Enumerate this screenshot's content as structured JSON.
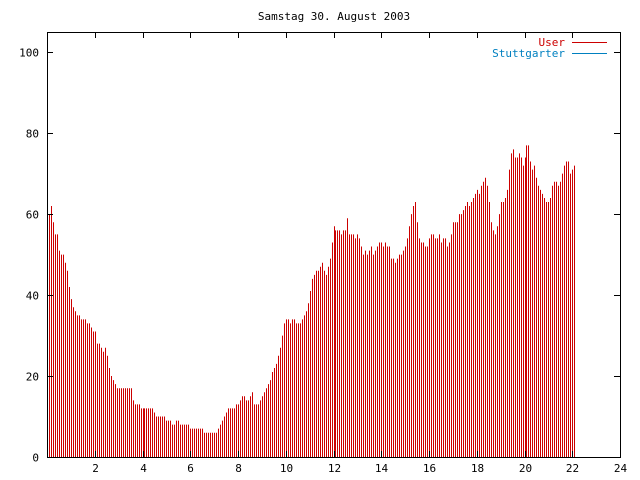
{
  "chart_data": {
    "type": "bar",
    "title": "Samstag 30. August 2003",
    "xlabel": "",
    "ylabel": "",
    "xlim": [
      0,
      24
    ],
    "ylim": [
      0,
      105
    ],
    "x_ticks": [
      2,
      4,
      6,
      8,
      10,
      12,
      14,
      16,
      18,
      20,
      22,
      24
    ],
    "y_ticks": [
      0,
      20,
      40,
      60,
      80,
      100
    ],
    "grid": false,
    "legend_position": "top-right",
    "interval_minutes": 5,
    "series": [
      {
        "name": "User",
        "color": "#cc0000",
        "values": [
          62,
          60,
          62,
          58,
          55,
          55,
          51,
          50,
          50,
          48,
          46,
          42,
          39,
          37,
          36,
          35,
          35,
          34,
          34,
          34,
          33,
          33,
          32,
          31,
          31,
          28,
          28,
          27,
          26,
          27,
          25,
          22,
          20,
          19,
          18,
          17,
          17,
          17,
          17,
          17,
          17,
          17,
          17,
          14,
          13,
          13,
          13,
          12,
          12,
          12,
          12,
          12,
          12,
          12,
          11,
          10,
          10,
          10,
          10,
          10,
          9,
          9,
          9,
          8,
          8,
          9,
          9,
          8,
          8,
          8,
          8,
          8,
          7,
          7,
          7,
          7,
          7,
          7,
          7,
          6,
          6,
          6,
          6,
          6,
          6,
          6,
          7,
          8,
          9,
          10,
          11,
          12,
          12,
          12,
          12,
          13,
          13,
          14,
          15,
          15,
          14,
          14,
          15,
          16,
          13,
          13,
          13,
          14,
          15,
          16,
          17,
          18,
          19,
          21,
          22,
          23,
          25,
          27,
          30,
          33,
          34,
          34,
          33,
          34,
          34,
          33,
          33,
          33,
          34,
          35,
          36,
          38,
          41,
          44,
          45,
          46,
          46,
          47,
          48,
          46,
          45,
          47,
          49,
          53,
          57,
          56,
          56,
          56,
          55,
          56,
          56,
          59,
          55,
          55,
          55,
          54,
          55,
          54,
          52,
          50,
          51,
          50,
          51,
          52,
          50,
          51,
          52,
          53,
          53,
          52,
          53,
          52,
          52,
          49,
          49,
          48,
          49,
          50,
          50,
          51,
          52,
          54,
          57,
          60,
          62,
          63,
          58,
          54,
          53,
          53,
          52,
          52,
          54,
          55,
          55,
          54,
          54,
          55,
          53,
          54,
          54,
          52,
          53,
          55,
          58,
          58,
          58,
          60,
          60,
          61,
          62,
          63,
          62,
          63,
          64,
          65,
          66,
          65,
          67,
          68,
          69,
          67,
          63,
          58,
          56,
          55,
          57,
          60,
          63,
          63,
          64,
          66,
          71,
          75,
          76,
          74,
          74,
          75,
          74,
          72,
          74,
          77,
          77,
          73,
          71,
          72,
          69,
          67,
          66,
          65,
          64,
          63,
          63,
          64,
          67,
          68,
          68,
          67,
          68,
          70,
          72,
          73,
          73,
          70,
          71,
          72
        ]
      },
      {
        "name": "Stuttgarter",
        "color": "#0080c0",
        "values": []
      }
    ]
  }
}
